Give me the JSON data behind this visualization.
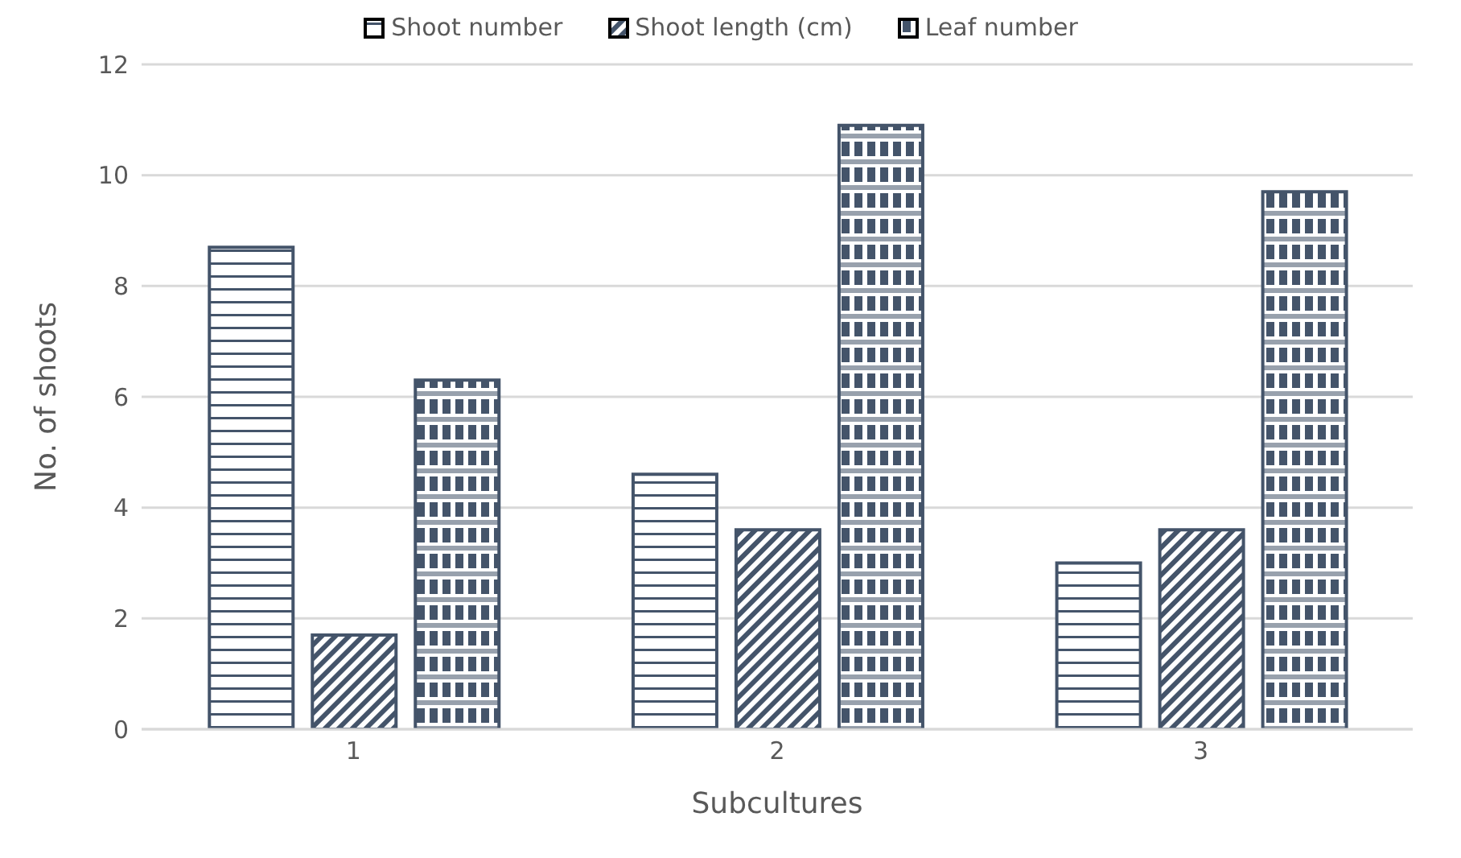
{
  "chart_data": {
    "type": "bar",
    "xlabel": "Subcultures",
    "ylabel": "No. of shoots",
    "categories": [
      "1",
      "2",
      "3"
    ],
    "series": [
      {
        "name": "Shoot number",
        "color": "#44546a",
        "values": [
          8.7,
          4.6,
          3.0
        ]
      },
      {
        "name": "Shoot length (cm)",
        "color": "#44546a",
        "values": [
          1.7,
          3.6,
          3.6
        ]
      },
      {
        "name": "Leaf number",
        "color": "#44546a",
        "values": [
          6.3,
          10.9,
          9.7
        ]
      }
    ],
    "ylim": [
      0,
      12
    ],
    "yticks": [
      0,
      2,
      4,
      6,
      8,
      10,
      12
    ],
    "grid": "y",
    "legend": "top"
  }
}
